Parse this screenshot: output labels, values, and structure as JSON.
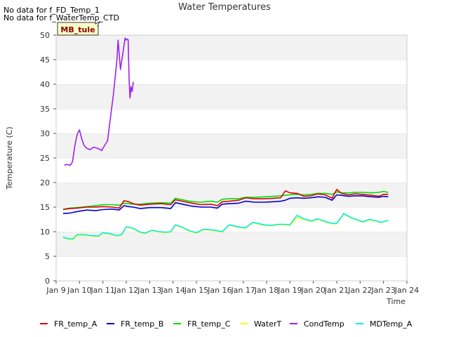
{
  "notes": [
    "No data for f_FD_Temp_1",
    "No data for f_WaterTemp_CTD"
  ],
  "badge": "MB_tule",
  "chart_data": {
    "type": "line",
    "title": "Water Temperatures",
    "xlabel": "Time",
    "ylabel": "Temperature (C)",
    "xlim": [
      9,
      24
    ],
    "ylim": [
      0,
      50
    ],
    "x_ticks": [
      "Jan 9",
      "Jan 10",
      "Jan 11",
      "Jan 12",
      "Jan 13",
      "Jan 14",
      "Jan 15",
      "Jan 16",
      "Jan 17",
      "Jan 18",
      "Jan 19",
      "Jan 20",
      "Jan 21",
      "Jan 22",
      "Jan 23",
      "Jan 24"
    ],
    "y_ticks": [
      0,
      5,
      10,
      15,
      20,
      25,
      30,
      35,
      40,
      45,
      50
    ],
    "grid": "horizontal bands",
    "legend_position": "bottom",
    "series": [
      {
        "name": "FR_temp_A",
        "color": "#dd0000",
        "x": [
          9.3,
          9.6,
          9.9,
          10.3,
          10.7,
          11.0,
          11.4,
          11.7,
          11.9,
          12.1,
          12.3,
          12.6,
          13.0,
          13.5,
          13.9,
          14.1,
          14.4,
          14.8,
          15.2,
          15.6,
          15.9,
          16.1,
          16.4,
          16.8,
          17.1,
          17.5,
          17.9,
          18.3,
          18.6,
          18.8,
          19.0,
          19.3,
          19.6,
          19.9,
          20.2,
          20.5,
          20.8,
          21.0,
          21.2,
          21.5,
          21.8,
          22.1,
          22.5,
          22.8,
          23.0,
          23.2
        ],
        "y": [
          14.5,
          14.7,
          14.8,
          15.0,
          15.0,
          15.1,
          15.0,
          14.8,
          16.3,
          16.1,
          15.7,
          15.4,
          15.6,
          15.7,
          15.5,
          16.5,
          16.2,
          15.8,
          15.5,
          15.6,
          15.3,
          16.1,
          16.2,
          16.4,
          16.9,
          16.7,
          16.7,
          16.8,
          16.9,
          18.3,
          17.9,
          17.8,
          17.2,
          17.3,
          17.7,
          17.5,
          16.8,
          18.6,
          17.8,
          17.5,
          17.7,
          17.6,
          17.4,
          17.2,
          17.6,
          17.6
        ]
      },
      {
        "name": "FR_temp_B",
        "color": "#0000cc",
        "x": [
          9.3,
          9.6,
          9.9,
          10.3,
          10.7,
          11.0,
          11.4,
          11.7,
          11.9,
          12.1,
          12.3,
          12.6,
          13.0,
          13.5,
          13.9,
          14.1,
          14.4,
          14.8,
          15.2,
          15.6,
          15.9,
          16.1,
          16.4,
          16.8,
          17.1,
          17.5,
          17.9,
          18.3,
          18.6,
          18.8,
          19.0,
          19.3,
          19.6,
          19.9,
          20.2,
          20.5,
          20.8,
          21.0,
          21.2,
          21.5,
          21.8,
          22.1,
          22.5,
          22.8,
          23.0,
          23.2
        ],
        "y": [
          13.7,
          13.8,
          14.1,
          14.4,
          14.3,
          14.5,
          14.6,
          14.4,
          15.3,
          15.1,
          15.0,
          14.7,
          14.9,
          14.9,
          14.7,
          15.9,
          15.6,
          15.2,
          15.0,
          15.0,
          14.8,
          15.6,
          15.7,
          15.8,
          16.2,
          16.0,
          16.0,
          16.1,
          16.2,
          16.4,
          16.8,
          16.9,
          16.8,
          16.9,
          17.1,
          17.0,
          16.4,
          17.5,
          17.4,
          17.2,
          17.3,
          17.3,
          17.1,
          17.0,
          17.2,
          17.1
        ]
      },
      {
        "name": "FR_temp_C",
        "color": "#00dd00",
        "x": [
          9.3,
          9.6,
          9.9,
          10.3,
          10.7,
          11.0,
          11.4,
          11.7,
          11.9,
          12.1,
          12.3,
          12.6,
          13.0,
          13.5,
          13.9,
          14.1,
          14.4,
          14.8,
          15.2,
          15.6,
          15.9,
          16.1,
          16.4,
          16.8,
          17.1,
          17.5,
          17.9,
          18.3,
          18.6,
          18.8,
          19.0,
          19.3,
          19.6,
          19.9,
          20.2,
          20.5,
          20.8,
          21.0,
          21.2,
          21.5,
          21.8,
          22.1,
          22.5,
          22.8,
          23.0,
          23.2
        ],
        "y": [
          14.6,
          14.8,
          14.9,
          15.1,
          15.3,
          15.5,
          15.5,
          15.4,
          15.8,
          15.7,
          15.6,
          15.6,
          15.8,
          15.9,
          15.8,
          16.8,
          16.5,
          16.1,
          16.0,
          16.2,
          16.0,
          16.6,
          16.7,
          16.7,
          17.0,
          17.0,
          17.1,
          17.2,
          17.3,
          17.4,
          17.5,
          17.6,
          17.5,
          17.6,
          17.8,
          17.8,
          17.6,
          18.1,
          17.9,
          17.9,
          18.0,
          18.0,
          17.9,
          18.0,
          18.2,
          18.0
        ]
      },
      {
        "name": "WaterT",
        "color": "#ffff00",
        "x": [
          9.3,
          9.5,
          9.7,
          9.9,
          10.2,
          10.5,
          10.8,
          11.0,
          11.3,
          11.6,
          11.8,
          12.0,
          12.3,
          12.6,
          12.8,
          13.1,
          13.4,
          13.7,
          13.9,
          14.1,
          14.4,
          14.7,
          15.0,
          15.3,
          15.6,
          15.9,
          16.1,
          16.4,
          16.7,
          16.9,
          17.1,
          17.4,
          17.7,
          17.9,
          18.2,
          18.5,
          18.8,
          19.0,
          19.3,
          19.6,
          19.9,
          20.2,
          20.5,
          20.8,
          21.0,
          21.3,
          21.6,
          21.9,
          22.1,
          22.4,
          22.7,
          22.9,
          23.2
        ],
        "y": [
          8.8,
          8.5,
          8.3,
          9.2,
          9.3,
          9.1,
          9.0,
          9.7,
          9.5,
          9.1,
          9.3,
          10.9,
          10.6,
          9.8,
          9.6,
          10.2,
          9.9,
          9.8,
          9.9,
          11.3,
          10.8,
          10.1,
          9.7,
          10.4,
          10.3,
          10.1,
          9.9,
          11.3,
          11.0,
          10.8,
          10.7,
          11.8,
          11.5,
          11.3,
          11.2,
          11.4,
          11.4,
          11.3,
          12.8,
          12.5,
          12.1,
          12.5,
          12.0,
          11.6,
          11.6,
          13.6,
          12.8,
          12.3,
          11.9,
          12.4,
          12.1,
          11.8,
          12.4
        ]
      },
      {
        "name": "CondTemp",
        "color": "#a020f0",
        "x": [
          9.35,
          9.45,
          9.6,
          9.7,
          9.8,
          9.9,
          10.0,
          10.1,
          10.2,
          10.3,
          10.45,
          10.6,
          10.75,
          10.85,
          10.95,
          11.0,
          11.2,
          11.45,
          11.6,
          11.65,
          11.75,
          11.95,
          12.0,
          12.05,
          12.08,
          12.12,
          12.16,
          12.2,
          12.25,
          12.3
        ],
        "y": [
          23.5,
          23.7,
          23.5,
          24.2,
          27.5,
          29.8,
          30.7,
          28.8,
          27.5,
          27.0,
          26.7,
          27.2,
          27.0,
          26.8,
          26.5,
          27.0,
          28.5,
          38.0,
          45.0,
          49.0,
          43.0,
          49.4,
          49.0,
          49.2,
          49.0,
          41.0,
          37.2,
          39.5,
          38.5,
          40.5
        ]
      },
      {
        "name": "MDTemp_A",
        "color": "#00eeee",
        "x": [
          9.3,
          9.5,
          9.7,
          9.9,
          10.2,
          10.5,
          10.8,
          11.0,
          11.3,
          11.6,
          11.8,
          12.0,
          12.3,
          12.6,
          12.8,
          13.1,
          13.4,
          13.7,
          13.9,
          14.1,
          14.4,
          14.7,
          15.0,
          15.3,
          15.6,
          15.9,
          16.1,
          16.4,
          16.7,
          16.9,
          17.1,
          17.4,
          17.7,
          17.9,
          18.2,
          18.5,
          18.8,
          19.0,
          19.3,
          19.6,
          19.9,
          20.2,
          20.5,
          20.8,
          21.0,
          21.3,
          21.6,
          21.9,
          22.1,
          22.4,
          22.7,
          22.9,
          23.2
        ],
        "y": [
          8.9,
          8.6,
          8.5,
          9.4,
          9.4,
          9.2,
          9.1,
          9.8,
          9.6,
          9.2,
          9.4,
          11.0,
          10.7,
          9.9,
          9.7,
          10.3,
          10.0,
          9.9,
          10.0,
          11.4,
          10.9,
          10.2,
          9.8,
          10.5,
          10.4,
          10.2,
          10.0,
          11.4,
          11.1,
          10.9,
          10.8,
          11.9,
          11.6,
          11.4,
          11.3,
          11.5,
          11.5,
          11.4,
          13.3,
          12.6,
          12.2,
          12.6,
          12.1,
          11.7,
          11.7,
          13.7,
          12.9,
          12.4,
          12.0,
          12.5,
          12.2,
          11.9,
          12.3
        ]
      }
    ]
  }
}
